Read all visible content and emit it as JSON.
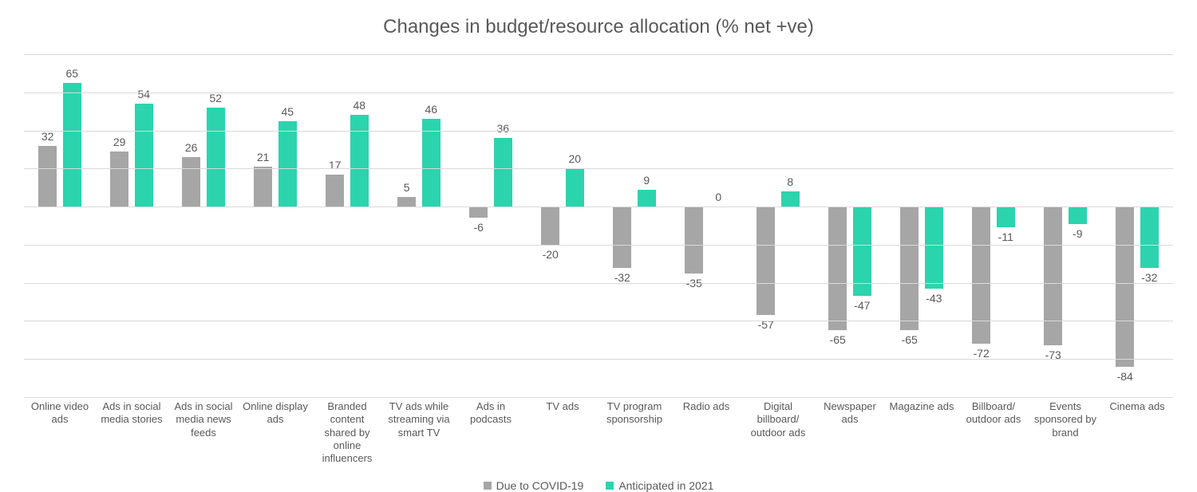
{
  "chart": {
    "type": "bar",
    "title": "Changes in budget/resource allocation (% net +ve)",
    "title_fontsize": 24,
    "title_color": "#595959",
    "background_color": "#ffffff",
    "grid_color": "#d9d9d9",
    "label_fontsize": 13,
    "data_label_fontsize": 14,
    "label_color": "#595959",
    "ylim": [
      -100,
      80
    ],
    "ytick_step": 20,
    "bar_width_ratio": 0.26,
    "categories": [
      "Online video ads",
      "Ads in social media stories",
      "Ads in social media news feeds",
      "Online display ads",
      "Branded content shared by online influencers",
      "TV ads while streaming via smart TV",
      "Ads in podcasts",
      "TV ads",
      "TV program sponsorship",
      "Radio ads",
      "Digital billboard/ outdoor ads",
      "Newspaper ads",
      "Magazine ads",
      "Billboard/ outdoor ads",
      "Events sponsored by brand",
      "Cinema ads"
    ],
    "series": [
      {
        "name": "Due to COVID-19",
        "color": "#a6a6a6",
        "values": [
          32,
          29,
          26,
          21,
          17,
          5,
          -6,
          -20,
          -32,
          -35,
          -57,
          -65,
          -65,
          -72,
          -73,
          -84
        ]
      },
      {
        "name": "Anticipated in 2021",
        "color": "#2bd4ad",
        "values": [
          65,
          54,
          52,
          45,
          48,
          46,
          36,
          20,
          9,
          0,
          8,
          -47,
          -43,
          -11,
          -9,
          -32
        ]
      }
    ]
  }
}
